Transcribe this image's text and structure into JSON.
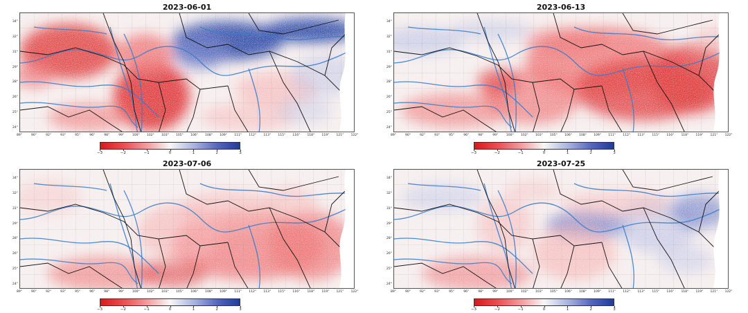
{
  "panels": [
    {
      "title": "2023-06-01",
      "pattern": "p1"
    },
    {
      "title": "2023-06-13",
      "pattern": "p2"
    },
    {
      "title": "2023-07-06",
      "pattern": "p3"
    },
    {
      "title": "2023-07-25",
      "pattern": "p4"
    }
  ],
  "lat_ticks": [
    "34°",
    "32°",
    "31°",
    "29°",
    "28°",
    "26°",
    "25°",
    "24°"
  ],
  "lon_ticks": [
    "89°",
    "90°",
    "92°",
    "93°",
    "95°",
    "96°",
    "98°",
    "99°",
    "100°",
    "102°",
    "103°",
    "105°",
    "106°",
    "108°",
    "109°",
    "111°",
    "112°",
    "113°",
    "115°",
    "116°",
    "118°",
    "119°",
    "121°",
    "122°"
  ],
  "colorbar": {
    "ticks": [
      "−3",
      "−2",
      "−1",
      "0",
      "1",
      "2",
      "3"
    ],
    "min": -3,
    "max": 3,
    "colors": {
      "negative": "#d7191c",
      "neutral": "#f7f7f7",
      "positive": "#1f3b9b"
    }
  },
  "overlay_colors": {
    "boundaries": "#111111",
    "rivers": "#3a7dc9"
  }
}
